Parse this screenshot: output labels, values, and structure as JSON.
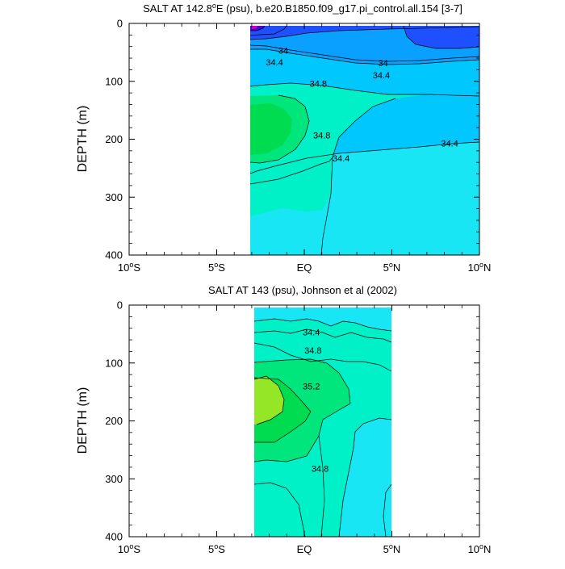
{
  "chart_data": [
    {
      "type": "contour",
      "title": "SALT AT 142.8°E (psu), b.e20.B1850.f09_g17.pi_control.all.154 [3-7]",
      "title_parts": {
        "pre": "SALT AT 142.8",
        "deg": "o",
        "post": "E (psu), b.e20.B1850.f09_g17.pi_control.all.154 [3-7]"
      },
      "ylabel": "DEPTH (m)",
      "xlabel": "",
      "xlim": [
        -10,
        10
      ],
      "ylim": [
        0,
        400
      ],
      "x_ticks": [
        -10,
        -5,
        0,
        5,
        10
      ],
      "x_tick_labels": [
        {
          "num": "10",
          "deg": "o",
          "hemi": "S"
        },
        {
          "num": "5",
          "deg": "o",
          "hemi": "S"
        },
        {
          "num": "EQ",
          "deg": "",
          "hemi": ""
        },
        {
          "num": "5",
          "deg": "o",
          "hemi": "N"
        },
        {
          "num": "10",
          "deg": "o",
          "hemi": "N"
        }
      ],
      "y_ticks": [
        0,
        100,
        200,
        300,
        400
      ],
      "y_tick_labels": [
        "0",
        "100",
        "200",
        "300",
        "400"
      ],
      "data_extent": {
        "lat": [
          -3.1,
          10
        ],
        "depth": [
          5,
          400
        ]
      },
      "contour_labels": [
        "34",
        "34.4",
        "34",
        "34.4",
        "34.8",
        "34.8",
        "34.4",
        "34.4"
      ],
      "contour_label_positions": [
        {
          "lat": -1.2,
          "depth": 47
        },
        {
          "lat": -1.7,
          "depth": 67
        },
        {
          "lat": 4.5,
          "depth": 68
        },
        {
          "lat": 4.4,
          "depth": 89
        },
        {
          "lat": 0.8,
          "depth": 104
        },
        {
          "lat": 1.0,
          "depth": 193
        },
        {
          "lat": 2.1,
          "depth": 233
        },
        {
          "lat": 8.3,
          "depth": 207
        }
      ],
      "fill_colors": [
        "#5000d0",
        "#1e50ff",
        "#0aa0ff",
        "#00c8ff",
        "#19e6f5",
        "#00f0c8",
        "#00e67d",
        "#00dc50"
      ]
    },
    {
      "type": "contour",
      "title": "SALT AT 143 (psu), Johnson et al (2002)",
      "ylabel": "DEPTH (m)",
      "xlabel": "",
      "xlim": [
        -10,
        10
      ],
      "ylim": [
        0,
        400
      ],
      "x_ticks": [
        -10,
        -5,
        0,
        5,
        10
      ],
      "x_tick_labels": [
        {
          "num": "10",
          "deg": "o",
          "hemi": "S"
        },
        {
          "num": "5",
          "deg": "o",
          "hemi": "S"
        },
        {
          "num": "EQ",
          "deg": "",
          "hemi": ""
        },
        {
          "num": "5",
          "deg": "o",
          "hemi": "N"
        },
        {
          "num": "10",
          "deg": "o",
          "hemi": "N"
        }
      ],
      "y_ticks": [
        0,
        100,
        200,
        300,
        400
      ],
      "y_tick_labels": [
        "0",
        "100",
        "200",
        "300",
        "400"
      ],
      "data_extent": {
        "lat": [
          -2.8,
          5
        ],
        "depth": [
          5,
          400
        ]
      },
      "contour_labels": [
        "34.4",
        "34.8",
        "35.2",
        "34.8"
      ],
      "contour_label_positions": [
        {
          "lat": 0.4,
          "depth": 47
        },
        {
          "lat": 0.5,
          "depth": 78
        },
        {
          "lat": 0.4,
          "depth": 140
        },
        {
          "lat": 0.9,
          "depth": 282
        }
      ],
      "fill_colors": [
        "#19e6f5",
        "#00f0c8",
        "#00e67d",
        "#00dc50",
        "#96e628"
      ]
    }
  ]
}
